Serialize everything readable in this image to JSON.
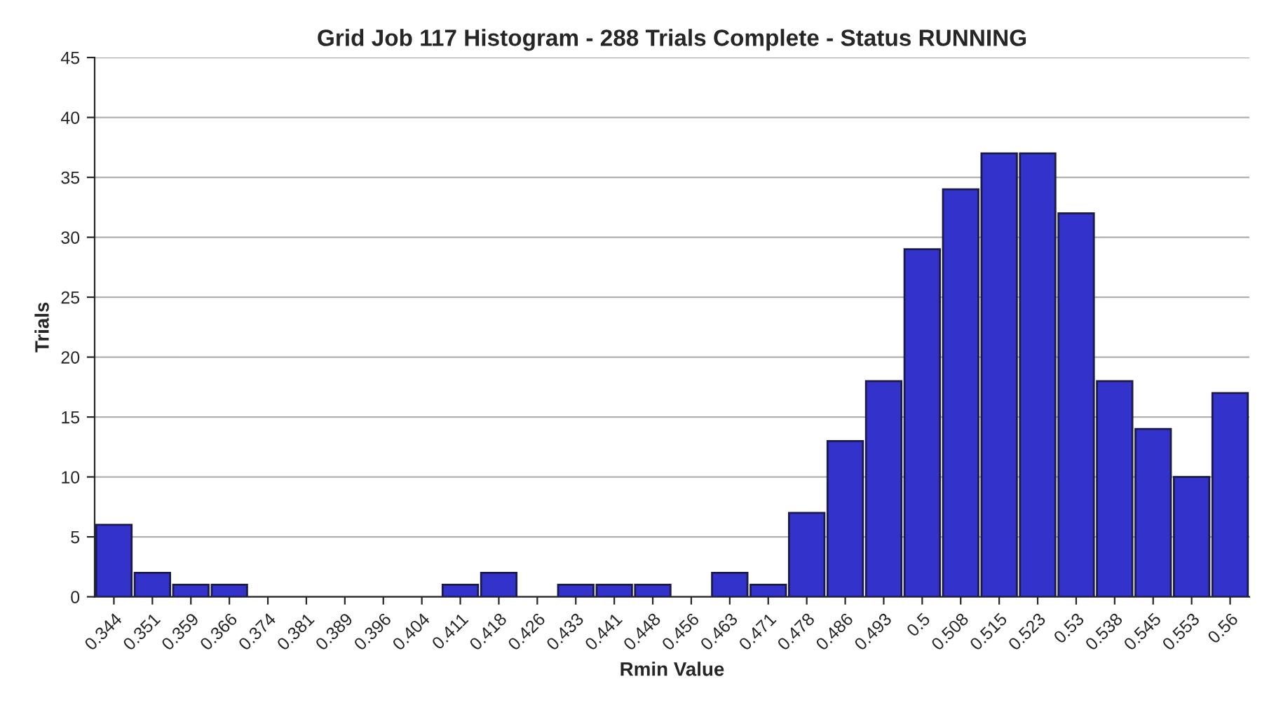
{
  "chart_data": {
    "type": "bar",
    "title": "Grid Job 117 Histogram - 288 Trials Complete - Status RUNNING",
    "xlabel": "Rmin Value",
    "ylabel": "Trials",
    "categories": [
      "0.344",
      "0.351",
      "0.359",
      "0.366",
      "0.374",
      "0.381",
      "0.389",
      "0.396",
      "0.404",
      "0.411",
      "0.418",
      "0.426",
      "0.433",
      "0.441",
      "0.448",
      "0.456",
      "0.463",
      "0.471",
      "0.478",
      "0.486",
      "0.493",
      "0.5",
      "0.508",
      "0.515",
      "0.523",
      "0.53",
      "0.538",
      "0.545",
      "0.553",
      "0.56"
    ],
    "values": [
      6,
      2,
      1,
      1,
      0,
      0,
      0,
      0,
      0,
      1,
      2,
      0,
      1,
      1,
      1,
      0,
      2,
      1,
      7,
      13,
      18,
      29,
      34,
      37,
      37,
      32,
      18,
      14,
      10,
      17
    ],
    "color": "#3333cc",
    "ylim": [
      0,
      45
    ],
    "yticks": [
      0,
      5,
      10,
      15,
      20,
      25,
      30,
      35,
      40,
      45
    ],
    "grid": "y",
    "legend": false
  }
}
